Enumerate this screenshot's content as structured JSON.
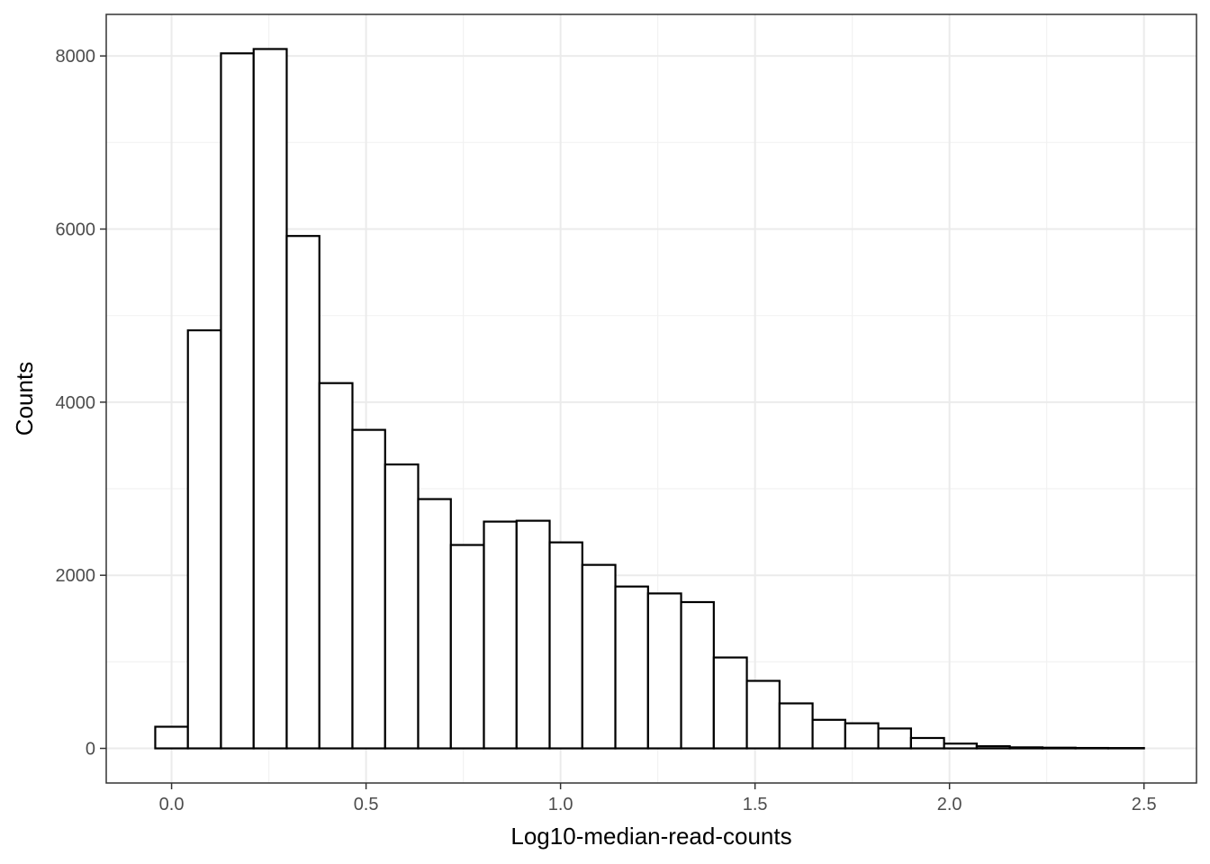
{
  "chart_data": {
    "type": "bar",
    "subtype": "histogram",
    "xlabel": "Log10-median-read-counts",
    "ylabel": "Counts",
    "xlim": [
      -0.168,
      2.635
    ],
    "ylim": [
      -400,
      8480
    ],
    "x_ticks": [
      0.0,
      0.5,
      1.0,
      1.5,
      2.0,
      2.5
    ],
    "x_tick_labels": [
      "0.0",
      "0.5",
      "1.0",
      "1.5",
      "2.0",
      "2.5"
    ],
    "y_ticks": [
      0,
      2000,
      4000,
      6000,
      8000
    ],
    "y_tick_labels": [
      "0",
      "2000",
      "4000",
      "6000",
      "8000"
    ],
    "grid": true,
    "legend": "none",
    "bin_width": 0.0845,
    "bins": [
      {
        "x0": -0.042,
        "x1": 0.042,
        "count": 250
      },
      {
        "x0": 0.042,
        "x1": 0.127,
        "count": 4830
      },
      {
        "x0": 0.127,
        "x1": 0.211,
        "count": 8030
      },
      {
        "x0": 0.211,
        "x1": 0.296,
        "count": 8080
      },
      {
        "x0": 0.296,
        "x1": 0.38,
        "count": 5920
      },
      {
        "x0": 0.38,
        "x1": 0.465,
        "count": 4220
      },
      {
        "x0": 0.465,
        "x1": 0.549,
        "count": 3680
      },
      {
        "x0": 0.549,
        "x1": 0.634,
        "count": 3280
      },
      {
        "x0": 0.634,
        "x1": 0.718,
        "count": 2880
      },
      {
        "x0": 0.718,
        "x1": 0.803,
        "count": 2350
      },
      {
        "x0": 0.803,
        "x1": 0.887,
        "count": 2620
      },
      {
        "x0": 0.887,
        "x1": 0.972,
        "count": 2630
      },
      {
        "x0": 0.972,
        "x1": 1.056,
        "count": 2380
      },
      {
        "x0": 1.056,
        "x1": 1.141,
        "count": 2120
      },
      {
        "x0": 1.141,
        "x1": 1.225,
        "count": 1870
      },
      {
        "x0": 1.225,
        "x1": 1.31,
        "count": 1790
      },
      {
        "x0": 1.31,
        "x1": 1.394,
        "count": 1690
      },
      {
        "x0": 1.394,
        "x1": 1.479,
        "count": 1050
      },
      {
        "x0": 1.479,
        "x1": 1.563,
        "count": 780
      },
      {
        "x0": 1.563,
        "x1": 1.648,
        "count": 520
      },
      {
        "x0": 1.648,
        "x1": 1.732,
        "count": 330
      },
      {
        "x0": 1.732,
        "x1": 1.817,
        "count": 290
      },
      {
        "x0": 1.817,
        "x1": 1.901,
        "count": 230
      },
      {
        "x0": 1.901,
        "x1": 1.986,
        "count": 120
      },
      {
        "x0": 1.986,
        "x1": 2.07,
        "count": 55
      },
      {
        "x0": 2.07,
        "x1": 2.155,
        "count": 25
      },
      {
        "x0": 2.155,
        "x1": 2.239,
        "count": 12
      },
      {
        "x0": 2.239,
        "x1": 2.324,
        "count": 8
      },
      {
        "x0": 2.324,
        "x1": 2.408,
        "count": 5
      },
      {
        "x0": 2.408,
        "x1": 2.5,
        "count": 4
      }
    ]
  }
}
